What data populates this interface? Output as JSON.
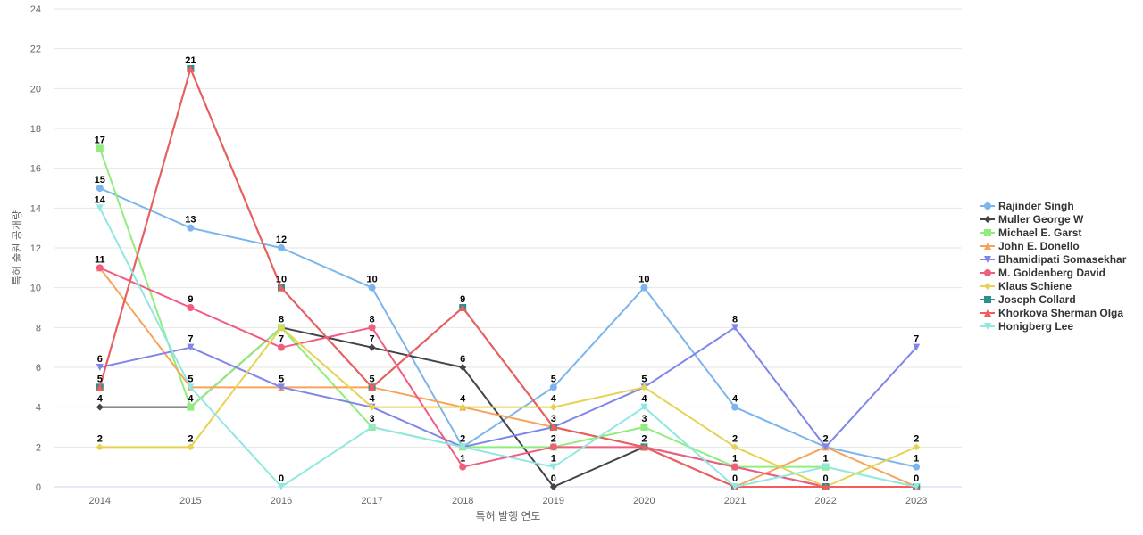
{
  "chart_data": {
    "type": "line",
    "title": "",
    "xlabel": "특허 발행 연도",
    "ylabel": "특허 출원 공개량",
    "categories": [
      "2014",
      "2015",
      "2016",
      "2017",
      "2018",
      "2019",
      "2020",
      "2021",
      "2022",
      "2023"
    ],
    "ylim": [
      0,
      24
    ],
    "yticks": [
      0,
      2,
      4,
      6,
      8,
      10,
      12,
      14,
      16,
      18,
      20,
      22,
      24
    ],
    "grid": true,
    "legend_position": "right",
    "series": [
      {
        "name": "Rajinder Singh",
        "color": "#7cb5ec",
        "marker": "circle",
        "values": [
          15,
          13,
          12,
          10,
          2,
          5,
          10,
          4,
          2,
          1
        ]
      },
      {
        "name": "Muller George W",
        "color": "#434348",
        "marker": "diamond",
        "values": [
          4,
          4,
          8,
          7,
          6,
          0,
          2,
          1,
          0,
          0
        ]
      },
      {
        "name": "Michael E. Garst",
        "color": "#90ed7d",
        "marker": "square",
        "values": [
          17,
          4,
          8,
          3,
          2,
          2,
          3,
          1,
          1,
          0
        ]
      },
      {
        "name": "John E. Donello",
        "color": "#f7a35c",
        "marker": "triangle",
        "values": [
          11,
          5,
          5,
          5,
          4,
          3,
          2,
          0,
          2,
          0
        ]
      },
      {
        "name": "Bhamidipati Somasekhar",
        "color": "#8085e9",
        "marker": "triangle-down",
        "values": [
          6,
          7,
          5,
          4,
          2,
          3,
          5,
          8,
          2,
          7
        ]
      },
      {
        "name": "M. Goldenberg David",
        "color": "#f15c80",
        "marker": "circle",
        "values": [
          11,
          9,
          7,
          8,
          1,
          2,
          2,
          1,
          0,
          0
        ]
      },
      {
        "name": "Klaus Schiene",
        "color": "#e4d354",
        "marker": "diamond",
        "values": [
          2,
          2,
          8,
          4,
          4,
          4,
          5,
          2,
          0,
          2
        ]
      },
      {
        "name": "Joseph Collard",
        "color": "#2b908f",
        "marker": "square",
        "values": [
          5,
          21,
          10,
          5,
          9,
          3,
          2,
          0,
          0,
          0
        ]
      },
      {
        "name": "Khorkova Sherman Olga",
        "color": "#f45b5b",
        "marker": "triangle",
        "values": [
          5,
          21,
          10,
          5,
          9,
          3,
          2,
          0,
          0,
          0
        ]
      },
      {
        "name": "Honigberg Lee",
        "color": "#91e8e1",
        "marker": "triangle-down",
        "values": [
          14,
          5,
          0,
          3,
          2,
          1,
          4,
          0,
          1,
          0
        ]
      }
    ]
  },
  "data_labels": [
    {
      "category": "2014",
      "value": 17
    },
    {
      "category": "2014",
      "value": 15
    },
    {
      "category": "2014",
      "value": 14
    },
    {
      "category": "2014",
      "value": 11
    },
    {
      "category": "2014",
      "value": 6
    },
    {
      "category": "2014",
      "value": 5
    },
    {
      "category": "2014",
      "value": 4
    },
    {
      "category": "2014",
      "value": 2
    },
    {
      "category": "2015",
      "value": 21
    },
    {
      "category": "2015",
      "value": 13
    },
    {
      "category": "2015",
      "value": 9
    },
    {
      "category": "2015",
      "value": 7
    },
    {
      "category": "2015",
      "value": 5
    },
    {
      "category": "2015",
      "value": 4
    },
    {
      "category": "2015",
      "value": 2
    },
    {
      "category": "2016",
      "value": 12
    },
    {
      "category": "2016",
      "value": 10
    },
    {
      "category": "2016",
      "value": 8
    },
    {
      "category": "2016",
      "value": 7
    },
    {
      "category": "2016",
      "value": 5
    },
    {
      "category": "2016",
      "value": 0
    },
    {
      "category": "2017",
      "value": 10
    },
    {
      "category": "2017",
      "value": 8
    },
    {
      "category": "2017",
      "value": 7
    },
    {
      "category": "2017",
      "value": 5
    },
    {
      "category": "2017",
      "value": 4
    },
    {
      "category": "2017",
      "value": 3
    },
    {
      "category": "2018",
      "value": 9
    },
    {
      "category": "2018",
      "value": 6
    },
    {
      "category": "2018",
      "value": 4
    },
    {
      "category": "2018",
      "value": 2
    },
    {
      "category": "2018",
      "value": 1
    },
    {
      "category": "2019",
      "value": 5
    },
    {
      "category": "2019",
      "value": 4
    },
    {
      "category": "2019",
      "value": 3
    },
    {
      "category": "2019",
      "value": 2
    },
    {
      "category": "2019",
      "value": 1
    },
    {
      "category": "2019",
      "value": 0
    },
    {
      "category": "2020",
      "value": 10
    },
    {
      "category": "2020",
      "value": 5
    },
    {
      "category": "2020",
      "value": 4
    },
    {
      "category": "2020",
      "value": 3
    },
    {
      "category": "2020",
      "value": 2
    },
    {
      "category": "2021",
      "value": 8
    },
    {
      "category": "2021",
      "value": 4
    },
    {
      "category": "2021",
      "value": 2
    },
    {
      "category": "2021",
      "value": 1
    },
    {
      "category": "2021",
      "value": 0
    },
    {
      "category": "2022",
      "value": 2
    },
    {
      "category": "2022",
      "value": 1
    },
    {
      "category": "2022",
      "value": 0
    },
    {
      "category": "2023",
      "value": 7
    },
    {
      "category": "2023",
      "value": 2
    },
    {
      "category": "2023",
      "value": 1
    },
    {
      "category": "2023",
      "value": 0
    }
  ]
}
